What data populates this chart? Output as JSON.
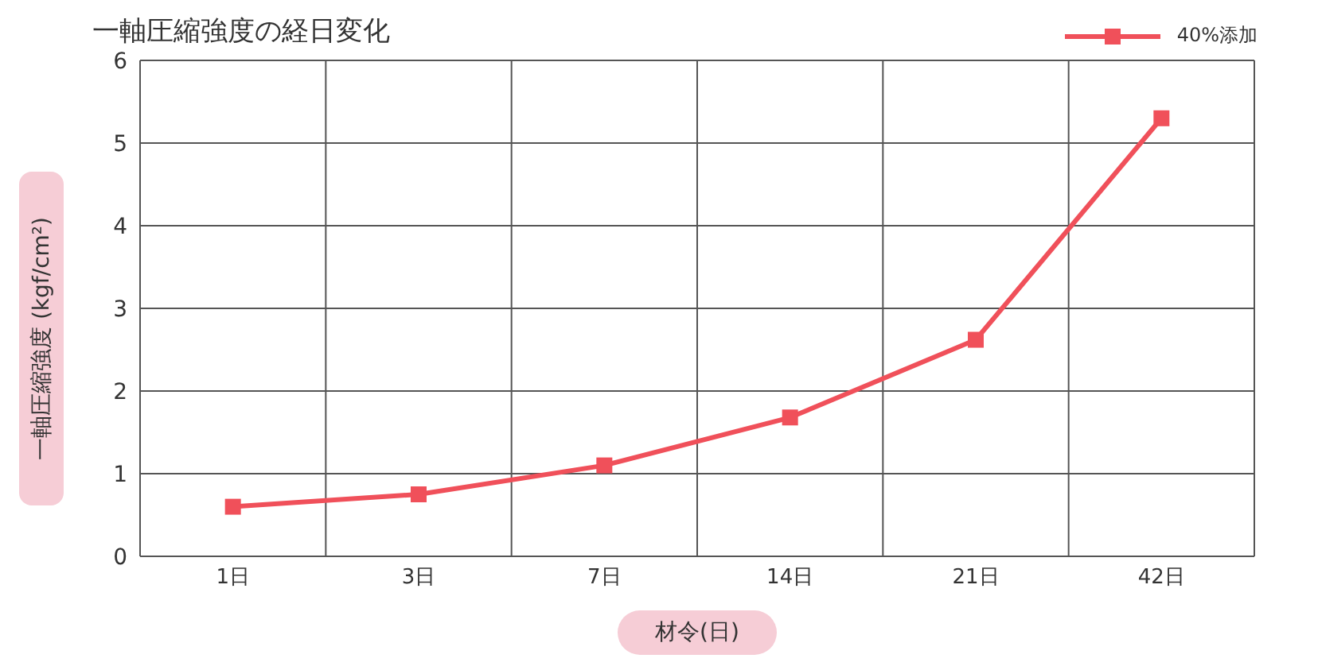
{
  "chart_data": {
    "type": "line",
    "title": "一軸圧縮強度の経日変化",
    "xlabel": "材令(日)",
    "ylabel": "一軸圧縮強度 (kgf/cm²)",
    "categories": [
      "1日",
      "3日",
      "7日",
      "14日",
      "21日",
      "42日"
    ],
    "series": [
      {
        "name": "40%添加",
        "color": "#f0505a",
        "values": [
          0.6,
          0.75,
          1.1,
          1.68,
          2.62,
          5.3
        ]
      }
    ],
    "ylim": [
      0,
      6
    ],
    "yticks": [
      0,
      1,
      2,
      3,
      4,
      5,
      6
    ],
    "grid": true,
    "legend": "top right",
    "marker": "square",
    "line_style": "solid"
  }
}
